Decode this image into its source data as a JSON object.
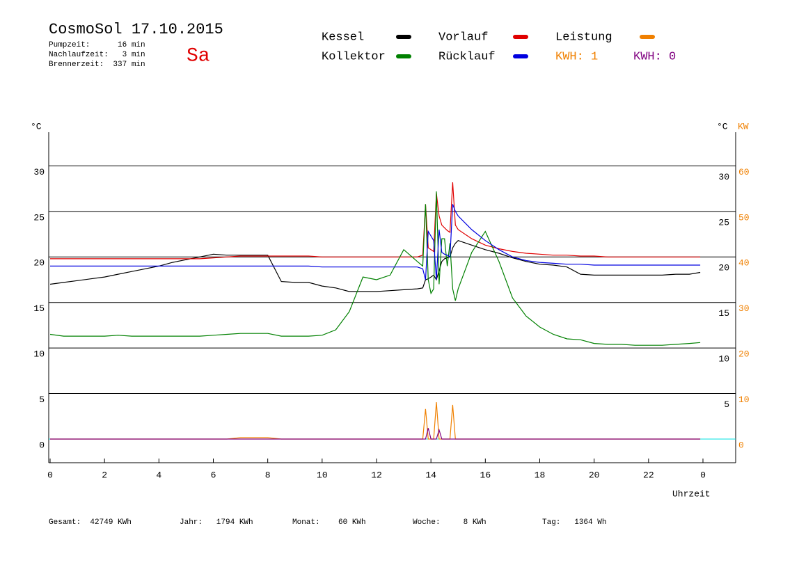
{
  "chart_data": {
    "type": "line",
    "title": "CosmoSol 17.10.2015",
    "day": "Sa",
    "info": [
      "Pumpzeit:      16 min",
      "Nachlaufzeit:   3 min",
      "Brennerzeit:  337 min"
    ],
    "kwh_total": "KWH: 1",
    "footer": [
      "Gesamt:  42749 KWh",
      "Jahr:   1794 KWh",
      "Monat:    60 KWh",
      "Woche:     8 KWh",
      "Tag:   1364 Wh"
    ],
    "y_label": "°C",
    "y_label_right": "°C",
    "y2_label": "KW",
    "x_label": "Uhrzeit",
    "xlim": [
      0,
      24
    ],
    "xticks": [
      0,
      2,
      4,
      6,
      8,
      10,
      12,
      14,
      16,
      18,
      20,
      22,
      {
        "value": 24,
        "label": "0"
      }
    ],
    "ylim": [
      -2.6,
      33.7
    ],
    "yticks": [
      0,
      5,
      10,
      15,
      20,
      25,
      30
    ],
    "yticks_right": [
      5,
      10,
      15,
      20,
      25,
      30
    ],
    "y2lim": [
      -5.2,
      67.4
    ],
    "y2ticks": [
      0,
      10,
      20,
      30,
      40,
      50,
      60
    ],
    "grid": true,
    "x": [
      0,
      0.5,
      1,
      1.5,
      2,
      2.5,
      3,
      3.5,
      4,
      4.5,
      5,
      5.5,
      6,
      6.5,
      7,
      7.5,
      8,
      8.5,
      9,
      9.5,
      10,
      10.5,
      11,
      11.5,
      12,
      12.5,
      13,
      13.5,
      13.7,
      13.8,
      13.9,
      14.0,
      14.1,
      14.2,
      14.3,
      14.4,
      14.5,
      14.6,
      14.7,
      14.8,
      14.9,
      15.0,
      15.5,
      16,
      16.5,
      17,
      17.5,
      18,
      18.5,
      19,
      19.5,
      20,
      20.5,
      21,
      21.5,
      22,
      22.5,
      23,
      23.5,
      23.9
    ],
    "series": [
      {
        "name": "Kessel",
        "color": "#000000",
        "values": [
          17.0,
          17.2,
          17.4,
          17.6,
          17.8,
          18.1,
          18.4,
          18.7,
          19.0,
          19.4,
          19.7,
          20.0,
          20.3,
          20.2,
          20.2,
          20.2,
          20.2,
          17.3,
          17.2,
          17.2,
          16.8,
          16.6,
          16.2,
          16.2,
          16.2,
          16.3,
          16.4,
          16.5,
          16.6,
          17.5,
          17.6,
          17.8,
          18.0,
          17.5,
          18.5,
          19.5,
          19.8,
          19.9,
          20.0,
          21.0,
          21.5,
          21.8,
          21.3,
          20.8,
          20.4,
          19.9,
          19.5,
          19.2,
          19.1,
          18.9,
          18.1,
          18.0,
          18.0,
          18.0,
          18.0,
          18.0,
          18.0,
          18.1,
          18.1,
          18.3
        ]
      },
      {
        "name": "Vorlauf",
        "color": "#e00000",
        "values": [
          19.8,
          19.8,
          19.8,
          19.8,
          19.8,
          19.8,
          19.8,
          19.8,
          19.8,
          19.8,
          19.8,
          19.8,
          19.9,
          20.0,
          20.1,
          20.1,
          20.1,
          20.1,
          20.1,
          20.1,
          20.0,
          20.0,
          20.0,
          20.0,
          20.0,
          20.0,
          20.0,
          20.0,
          20.2,
          25.8,
          21.0,
          20.8,
          20.6,
          27.0,
          24.5,
          23.5,
          23.2,
          22.9,
          22.7,
          28.2,
          23.5,
          23.0,
          22.0,
          21.3,
          20.9,
          20.6,
          20.4,
          20.3,
          20.2,
          20.2,
          20.1,
          20.1,
          20.0,
          20.0,
          20.0,
          20.0,
          20.0,
          20.0,
          20.0,
          20.0
        ]
      },
      {
        "name": "Leistung",
        "color": "#f08000",
        "axis": "y2",
        "values": [
          0,
          0,
          0,
          0,
          0,
          0,
          0,
          0,
          0,
          0,
          0,
          0,
          0,
          0,
          0.3,
          0.3,
          0.3,
          0,
          0,
          0,
          0,
          0,
          0,
          0,
          0,
          0,
          0,
          0,
          0,
          6.6,
          0,
          0,
          0,
          8.1,
          0,
          0,
          0,
          0,
          0,
          7.5,
          0,
          0,
          0,
          0,
          0,
          0,
          0,
          0,
          0,
          0,
          0,
          0,
          0,
          0,
          0,
          0,
          0,
          0,
          0,
          0
        ]
      },
      {
        "name": "Kollektor",
        "color": "#008000",
        "values": [
          11.5,
          11.3,
          11.3,
          11.3,
          11.3,
          11.4,
          11.3,
          11.3,
          11.3,
          11.3,
          11.3,
          11.3,
          11.4,
          11.5,
          11.6,
          11.6,
          11.6,
          11.3,
          11.3,
          11.3,
          11.4,
          12.0,
          14.0,
          17.8,
          17.5,
          18.0,
          20.8,
          19.5,
          19.0,
          25.8,
          17.5,
          16.0,
          16.5,
          27.2,
          17.0,
          22.0,
          22.0,
          19.0,
          21.5,
          16.5,
          15.2,
          16.5,
          20.5,
          22.8,
          19.5,
          15.5,
          13.5,
          12.3,
          11.5,
          11.0,
          10.9,
          10.5,
          10.4,
          10.4,
          10.3,
          10.3,
          10.3,
          10.4,
          10.5,
          10.6
        ]
      },
      {
        "name": "Rücklauf",
        "color": "#0000e0",
        "values": [
          19.0,
          19.0,
          19.0,
          19.0,
          19.0,
          19.0,
          19.0,
          19.0,
          19.0,
          19.0,
          19.0,
          19.0,
          19.0,
          19.0,
          19.0,
          19.0,
          19.0,
          19.0,
          19.0,
          19.0,
          18.9,
          18.9,
          18.9,
          18.9,
          18.9,
          18.9,
          18.9,
          18.9,
          18.7,
          17.5,
          22.8,
          22.3,
          21.8,
          17.5,
          23.0,
          20.5,
          20.3,
          20.2,
          20.0,
          25.8,
          25.0,
          24.5,
          23.0,
          21.8,
          20.8,
          20.0,
          19.6,
          19.4,
          19.3,
          19.2,
          19.2,
          19.1,
          19.1,
          19.1,
          19.1,
          19.1,
          19.1,
          19.1,
          19.1,
          19.1
        ]
      },
      {
        "name": "KWH: 0",
        "color": "#800080",
        "axis": "y2",
        "values": [
          0,
          0,
          0,
          0,
          0,
          0,
          0,
          0,
          0,
          0,
          0,
          0,
          0,
          0,
          0,
          0,
          0,
          0,
          0,
          0,
          0,
          0,
          0,
          0,
          0,
          0,
          0,
          0,
          0,
          0,
          2.4,
          0,
          0,
          0,
          2.0,
          0,
          0,
          0,
          0,
          0,
          0,
          0,
          0,
          0,
          0,
          0,
          0,
          0,
          0,
          0,
          0,
          0,
          0,
          0,
          0,
          0,
          0,
          0,
          0,
          0
        ]
      }
    ]
  }
}
